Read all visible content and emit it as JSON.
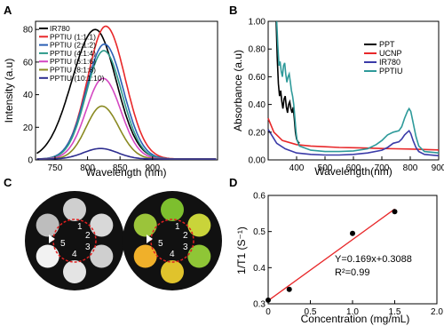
{
  "panel_labels": {
    "a": "A",
    "b": "B",
    "c": "C",
    "d": "D"
  },
  "chart_data": [
    {
      "panel": "A",
      "type": "line",
      "xlabel": "Wavelength (nm)",
      "ylabel": "Intensity (a.u)",
      "xlim": [
        720,
        1000
      ],
      "ylim": [
        0,
        85
      ],
      "xticks": [
        750,
        800,
        850,
        900
      ],
      "yticks": [
        0,
        20,
        40,
        60,
        80
      ],
      "legend_position": "top-left",
      "series": [
        {
          "name": "IR780",
          "color": "#000000",
          "peak_x": 812,
          "peak_y": 80,
          "sl": 36,
          "sr": 32,
          "base": 0.5
        },
        {
          "name": "PPTIU (1:1:1)",
          "color": "#e8282a",
          "peak_x": 828,
          "peak_y": 82,
          "sl": 28,
          "sr": 30,
          "base": 0.5
        },
        {
          "name": "PPTIU (2:1:2)",
          "color": "#2a5fb4",
          "peak_x": 826,
          "peak_y": 71,
          "sl": 28,
          "sr": 29,
          "base": 0.5
        },
        {
          "name": "PPTIU (4:1:4)",
          "color": "#2e9a8a",
          "peak_x": 825,
          "peak_y": 67,
          "sl": 27,
          "sr": 28,
          "base": 0.5
        },
        {
          "name": "PPTIU (6:1:6)",
          "color": "#d447c2",
          "peak_x": 824,
          "peak_y": 50,
          "sl": 26,
          "sr": 27,
          "base": 0.5
        },
        {
          "name": "PPTIU (8:1:8)",
          "color": "#8a8a22",
          "peak_x": 822,
          "peak_y": 33,
          "sl": 24,
          "sr": 26,
          "base": 0.5
        },
        {
          "name": "PPTIU (10:1:10)",
          "color": "#2d2d8f",
          "peak_x": 820,
          "peak_y": 7,
          "sl": 26,
          "sr": 26,
          "base": 0.5
        }
      ]
    },
    {
      "panel": "B",
      "type": "line",
      "xlabel": "Wavelength(nm)",
      "ylabel": "Absorbance (a.u)",
      "xlim": [
        300,
        900
      ],
      "ylim": [
        0,
        1.0
      ],
      "xticks": [
        400,
        500,
        600,
        700,
        800,
        900
      ],
      "yticks": [
        0.0,
        0.2,
        0.4,
        0.6,
        0.8,
        1.0
      ],
      "legend_position": "top-right",
      "series": [
        {
          "name": "PPT",
          "color": "#000000",
          "points": [
            [
              328,
              1.0
            ],
            [
              332,
              0.74
            ],
            [
              336,
              0.55
            ],
            [
              340,
              0.46
            ],
            [
              344,
              0.5
            ],
            [
              348,
              0.42
            ],
            [
              352,
              0.37
            ],
            [
              356,
              0.44
            ],
            [
              360,
              0.46
            ],
            [
              364,
              0.38
            ],
            [
              368,
              0.34
            ],
            [
              372,
              0.4
            ],
            [
              376,
              0.42
            ],
            [
              380,
              0.37
            ],
            [
              384,
              0.34
            ],
            [
              388,
              0.38
            ],
            [
              392,
              0.3
            ],
            [
              396,
              0.2
            ],
            [
              400,
              0.15
            ],
            [
              405,
              0.13
            ],
            [
              410,
              0.12
            ]
          ]
        },
        {
          "name": "UCNP",
          "color": "#e8282a",
          "points": [
            [
              300,
              0.3
            ],
            [
              320,
              0.2
            ],
            [
              350,
              0.14
            ],
            [
              400,
              0.11
            ],
            [
              450,
              0.1
            ],
            [
              500,
              0.095
            ],
            [
              550,
              0.09
            ],
            [
              600,
              0.088
            ],
            [
              650,
              0.085
            ],
            [
              700,
              0.082
            ],
            [
              750,
              0.08
            ],
            [
              800,
              0.078
            ],
            [
              850,
              0.075
            ],
            [
              900,
              0.072
            ]
          ]
        },
        {
          "name": "IR780",
          "color": "#3b3ba8",
          "points": [
            [
              300,
              0.22
            ],
            [
              330,
              0.12
            ],
            [
              360,
              0.08
            ],
            [
              400,
              0.05
            ],
            [
              450,
              0.04
            ],
            [
              500,
              0.035
            ],
            [
              550,
              0.035
            ],
            [
              600,
              0.04
            ],
            [
              650,
              0.05
            ],
            [
              700,
              0.07
            ],
            [
              720,
              0.09
            ],
            [
              740,
              0.12
            ],
            [
              760,
              0.13
            ],
            [
              770,
              0.15
            ],
            [
              780,
              0.18
            ],
            [
              790,
              0.2
            ],
            [
              796,
              0.21
            ],
            [
              802,
              0.19
            ],
            [
              810,
              0.14
            ],
            [
              820,
              0.09
            ],
            [
              830,
              0.06
            ],
            [
              850,
              0.04
            ],
            [
              900,
              0.03
            ]
          ]
        },
        {
          "name": "PPTIU",
          "color": "#2e9a9a",
          "points": [
            [
              330,
              1.0
            ],
            [
              334,
              0.82
            ],
            [
              338,
              0.68
            ],
            [
              342,
              0.71
            ],
            [
              346,
              0.64
            ],
            [
              350,
              0.6
            ],
            [
              354,
              0.68
            ],
            [
              358,
              0.7
            ],
            [
              362,
              0.62
            ],
            [
              366,
              0.56
            ],
            [
              370,
              0.6
            ],
            [
              374,
              0.62
            ],
            [
              378,
              0.56
            ],
            [
              382,
              0.5
            ],
            [
              386,
              0.46
            ],
            [
              390,
              0.4
            ],
            [
              394,
              0.3
            ],
            [
              398,
              0.2
            ],
            [
              402,
              0.14
            ],
            [
              410,
              0.1
            ],
            [
              450,
              0.07
            ],
            [
              500,
              0.06
            ],
            [
              550,
              0.06
            ],
            [
              600,
              0.065
            ],
            [
              650,
              0.08
            ],
            [
              680,
              0.11
            ],
            [
              700,
              0.14
            ],
            [
              720,
              0.18
            ],
            [
              740,
              0.2
            ],
            [
              760,
              0.21
            ],
            [
              770,
              0.24
            ],
            [
              780,
              0.3
            ],
            [
              790,
              0.35
            ],
            [
              796,
              0.37
            ],
            [
              802,
              0.35
            ],
            [
              810,
              0.27
            ],
            [
              820,
              0.17
            ],
            [
              830,
              0.1
            ],
            [
              850,
              0.06
            ],
            [
              900,
              0.05
            ]
          ]
        }
      ]
    },
    {
      "panel": "D",
      "type": "scatter",
      "xlabel": "Concentration (mg/mL)",
      "ylabel": "1/T1 (S⁻¹)",
      "xlim": [
        0,
        2.0
      ],
      "ylim": [
        0.3,
        0.6
      ],
      "xticks": [
        "0",
        "0.5",
        "1.0",
        "1.5",
        "2.0"
      ],
      "yticks": [
        "0.3",
        "0.4",
        "0.5",
        "0.6"
      ],
      "grid": false,
      "points": [
        [
          0,
          0.31
        ],
        [
          0.25,
          0.34
        ],
        [
          1.0,
          0.495
        ],
        [
          1.5,
          0.555
        ]
      ],
      "fit_line": {
        "slope": 0.169,
        "intercept": 0.3088,
        "x_range": [
          0,
          1.5
        ],
        "color": "#e8282a"
      },
      "equation": "Y=0.169x+0.3088",
      "r_squared": "R²=0.99"
    }
  ],
  "panel_c": {
    "well_numbers": [
      "1",
      "2",
      "3",
      "4",
      "5"
    ],
    "left_image": {
      "wells": [
        "#cfcfcf",
        "#d8d8d8",
        "#cfcfcf",
        "#e4e4e4",
        "#f2f2f2",
        "#bdbdbd"
      ]
    },
    "right_image": {
      "wells": [
        "#7dbf2e",
        "#c9d43a",
        "#8fc636",
        "#e0c32c",
        "#f0b02a",
        "#9bc43a"
      ]
    }
  }
}
